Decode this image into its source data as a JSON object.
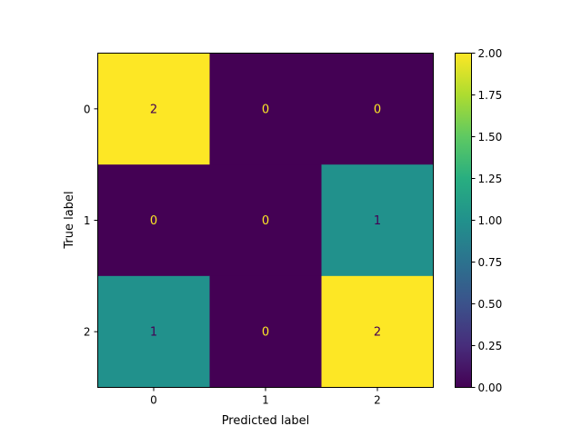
{
  "chart_data": {
    "type": "heatmap",
    "title": "",
    "xlabel": "Predicted label",
    "ylabel": "True label",
    "x_categories": [
      "0",
      "1",
      "2"
    ],
    "y_categories": [
      "0",
      "1",
      "2"
    ],
    "values": [
      [
        2,
        0,
        0
      ],
      [
        0,
        0,
        1
      ],
      [
        1,
        0,
        2
      ]
    ],
    "colorbar": {
      "range": [
        0.0,
        2.0
      ],
      "ticks": [
        0.0,
        0.25,
        0.5,
        0.75,
        1.0,
        1.25,
        1.5,
        1.75,
        2.0
      ],
      "tick_labels": [
        "0.00",
        "0.25",
        "0.50",
        "0.75",
        "1.00",
        "1.25",
        "1.50",
        "1.75",
        "2.00"
      ]
    },
    "colormap": "viridis",
    "colors": {
      "low": "#440154",
      "mid": "#21918c",
      "high": "#fde725",
      "text_on_dark": "#fde725",
      "text_on_light": "#440154"
    },
    "grid": false
  }
}
